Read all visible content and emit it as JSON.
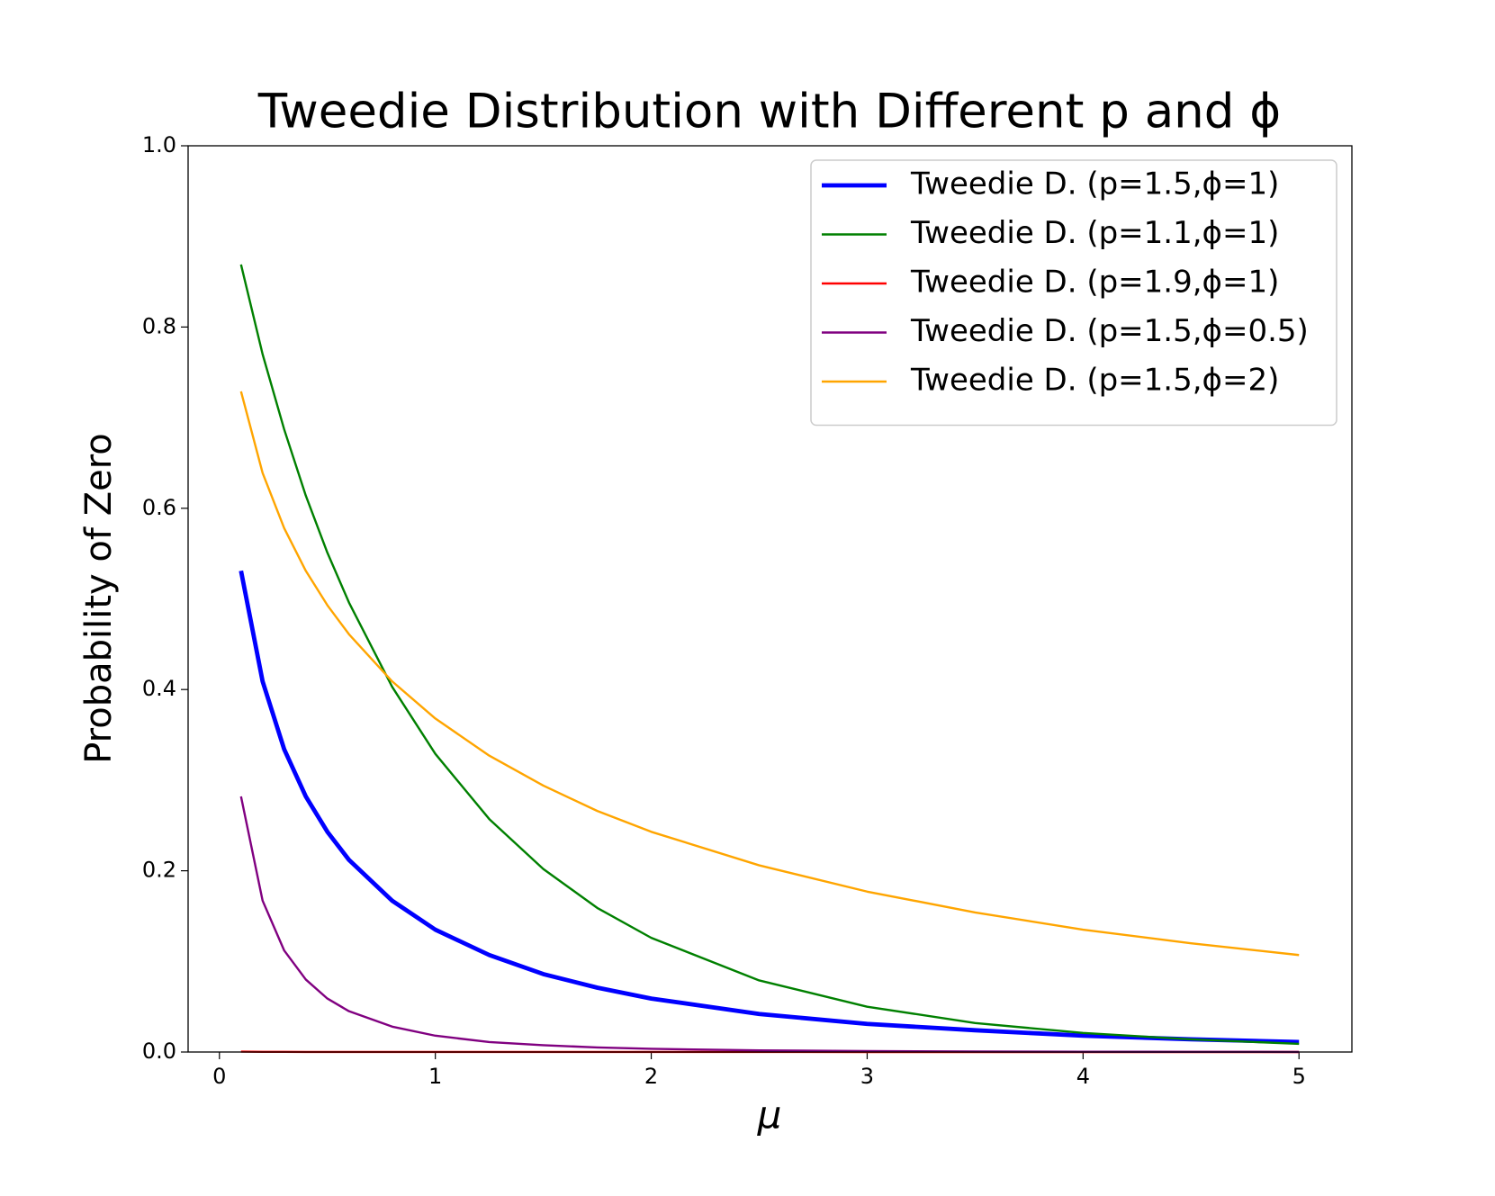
{
  "chart_data": {
    "type": "line",
    "title": "Tweedie Distribution with Different p and ϕ",
    "x_label": "μ",
    "y_label": "Probability of Zero",
    "x": [
      0.1,
      0.2,
      0.3,
      0.4,
      0.5,
      0.6,
      0.8,
      1.0,
      1.25,
      1.5,
      1.75,
      2.0,
      2.5,
      3.0,
      3.5,
      4.0,
      4.5,
      5.0
    ],
    "series": [
      {
        "name": "Tweedie D. (p=1.5,ϕ=1)",
        "color": "#0000ff",
        "linewidth": 3,
        "values": [
          0.531,
          0.409,
          0.334,
          0.282,
          0.243,
          0.212,
          0.167,
          0.135,
          0.107,
          0.086,
          0.071,
          0.059,
          0.042,
          0.031,
          0.024,
          0.018,
          0.014,
          0.011
        ]
      },
      {
        "name": "Tweedie D. (p=1.1,ϕ=1)",
        "color": "#008000",
        "linewidth": 1.5,
        "values": [
          0.869,
          0.77,
          0.687,
          0.614,
          0.551,
          0.496,
          0.403,
          0.329,
          0.257,
          0.202,
          0.159,
          0.126,
          0.079,
          0.05,
          0.032,
          0.021,
          0.014,
          0.009
        ]
      },
      {
        "name": "Tweedie D. (p=1.9,ϕ=1)",
        "color": "#ff0000",
        "linewidth": 1.5,
        "values": [
          0.0004,
          0.0002,
          0.00014,
          0.00011,
          9e-05,
          7e-05,
          6e-05,
          5e-05,
          4e-05,
          3e-05,
          2.6e-05,
          2.2e-05,
          1.7e-05,
          1.4e-05,
          1.2e-05,
          1e-05,
          9e-06,
          8e-06
        ]
      },
      {
        "name": "Tweedie D. (p=1.5,ϕ=0.5)",
        "color": "#800080",
        "linewidth": 1.5,
        "values": [
          0.282,
          0.167,
          0.112,
          0.08,
          0.059,
          0.045,
          0.028,
          0.018,
          0.011,
          0.0075,
          0.005,
          0.0035,
          0.0018,
          0.001,
          0.0006,
          0.0003,
          0.0002,
          0.0001
        ]
      },
      {
        "name": "Tweedie D. (p=1.5,ϕ=2)",
        "color": "#ffa500",
        "linewidth": 1.5,
        "values": [
          0.729,
          0.639,
          0.578,
          0.531,
          0.493,
          0.461,
          0.409,
          0.368,
          0.327,
          0.294,
          0.266,
          0.243,
          0.206,
          0.177,
          0.154,
          0.135,
          0.12,
          0.107
        ]
      }
    ],
    "xlim": [
      -0.145,
      5.245
    ],
    "ylim": [
      0,
      1
    ],
    "xticks": [
      0,
      1,
      2,
      3,
      4,
      5
    ],
    "yticks": [
      {
        "value": 0,
        "label": "0.0"
      },
      {
        "value": 0.2,
        "label": "0.2"
      },
      {
        "value": 0.4,
        "label": "0.4"
      },
      {
        "value": 0.6,
        "label": "0.6"
      },
      {
        "value": 0.8,
        "label": "0.8"
      },
      {
        "value": 1,
        "label": "1.0"
      }
    ],
    "legend": "upper right"
  }
}
